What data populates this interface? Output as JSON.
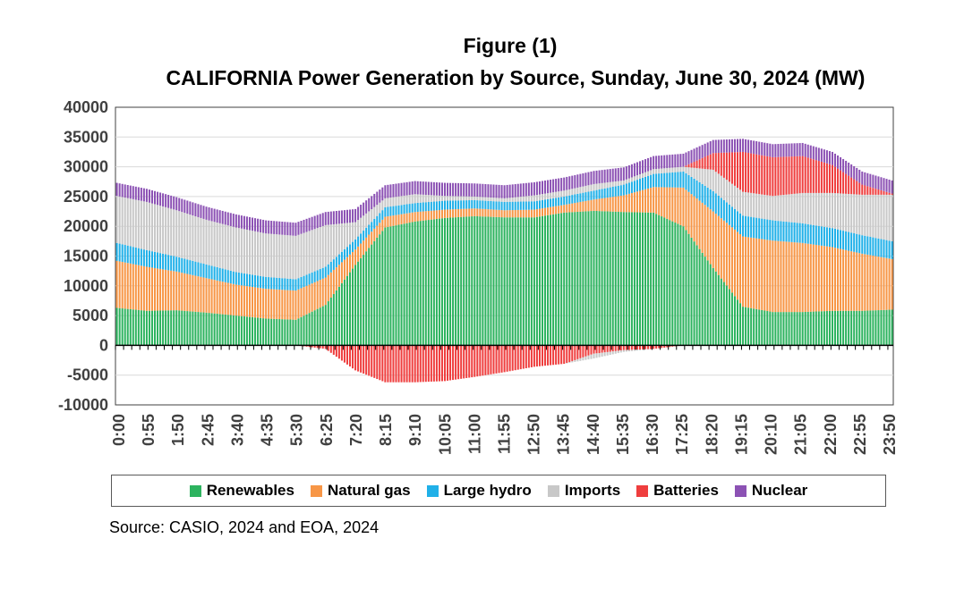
{
  "figure_label": "Figure (1)",
  "source": "Source: CASIO, 2024 and EOA, 2024",
  "colors": {
    "renewables": "#2db35f",
    "natural_gas": "#f79646",
    "large_hydro": "#20b0e8",
    "imports": "#c8c8c8",
    "batteries": "#ef3e3e",
    "nuclear": "#8c52b4",
    "grid": "#d9d9d9",
    "axis": "#404040"
  },
  "chart_data": {
    "type": "bar",
    "stacked": true,
    "title": "CALIFORNIA Power Generation by Source, Sunday, June 30, 2024 (MW)",
    "xlabel": "",
    "ylabel": "",
    "ylim": [
      -10000,
      40000
    ],
    "yticks": [
      "40000",
      "35000",
      "30000",
      "25000",
      "20000",
      "15000",
      "10000",
      "5000",
      "0",
      "-5000",
      "-10000"
    ],
    "grid": true,
    "legend_position": "bottom",
    "x": [
      "0:00",
      "0:55",
      "1:50",
      "2:45",
      "3:40",
      "4:35",
      "5:30",
      "6:25",
      "7:20",
      "8:15",
      "9:10",
      "10:05",
      "11:00",
      "11:55",
      "12:50",
      "13:45",
      "14:40",
      "15:35",
      "16:30",
      "17:25",
      "18:20",
      "19:15",
      "20:10",
      "21:05",
      "22:00",
      "22:55",
      "23:50"
    ],
    "series": [
      {
        "name": "Renewables",
        "color_key": "renewables",
        "values": [
          6300,
          5800,
          5900,
          5500,
          5000,
          4500,
          4300,
          6800,
          13500,
          19800,
          20800,
          21400,
          21700,
          21500,
          21500,
          22300,
          22600,
          22400,
          22300,
          20000,
          13000,
          6500,
          5600,
          5600,
          5800,
          5800,
          6000
        ]
      },
      {
        "name": "Natural gas",
        "color_key": "natural_gas",
        "values": [
          7900,
          7400,
          6500,
          5800,
          5200,
          5000,
          4900,
          4600,
          2600,
          1800,
          1600,
          1400,
          1300,
          1200,
          1300,
          1300,
          1900,
          2800,
          4300,
          6500,
          9500,
          11800,
          12000,
          11600,
          10700,
          9600,
          8500
        ]
      },
      {
        "name": "Large hydro",
        "color_key": "large_hydro",
        "values": [
          3000,
          2800,
          2500,
          2300,
          2100,
          2000,
          1900,
          1800,
          1700,
          1600,
          1500,
          1500,
          1400,
          1400,
          1400,
          1400,
          1500,
          1800,
          2200,
          2700,
          3400,
          3500,
          3400,
          3300,
          3200,
          3100,
          3000
        ]
      },
      {
        "name": "Imports",
        "color_key": "imports",
        "values": [
          7900,
          8100,
          7800,
          7500,
          7500,
          7300,
          7300,
          7000,
          2900,
          1500,
          1500,
          800,
          600,
          600,
          1000,
          1000,
          1100,
          700,
          800,
          800,
          3600,
          4000,
          4100,
          5100,
          5900,
          6800,
          7800
        ]
      },
      {
        "name": "Batteries",
        "color_key": "batteries",
        "values": [
          0,
          0,
          0,
          0,
          0,
          0,
          0,
          0,
          0,
          0,
          0,
          0,
          0,
          0,
          0,
          0,
          0,
          0,
          0,
          0,
          2800,
          6700,
          6500,
          6200,
          4700,
          1700,
          200
        ]
      },
      {
        "name": "Nuclear",
        "color_key": "nuclear",
        "values": [
          2200,
          2200,
          2200,
          2200,
          2200,
          2200,
          2200,
          2200,
          2200,
          2200,
          2200,
          2200,
          2200,
          2200,
          2200,
          2200,
          2200,
          2200,
          2200,
          2200,
          2200,
          2200,
          2200,
          2200,
          2200,
          2200,
          2200
        ]
      }
    ],
    "negative_series": [
      {
        "name": "Batteries",
        "color_key": "batteries",
        "values": [
          0,
          0,
          0,
          0,
          0,
          0,
          0,
          -600,
          -4200,
          -6200,
          -6200,
          -6000,
          -5300,
          -4500,
          -3600,
          -3100,
          -1400,
          -800,
          -600,
          0,
          0,
          0,
          0,
          0,
          0,
          0,
          0
        ]
      },
      {
        "name": "Imports",
        "color_key": "imports",
        "values": [
          0,
          0,
          0,
          0,
          0,
          0,
          0,
          0,
          0,
          0,
          0,
          0,
          0,
          0,
          0,
          0,
          -800,
          -300,
          0,
          0,
          0,
          0,
          0,
          0,
          0,
          0,
          0
        ]
      }
    ]
  }
}
